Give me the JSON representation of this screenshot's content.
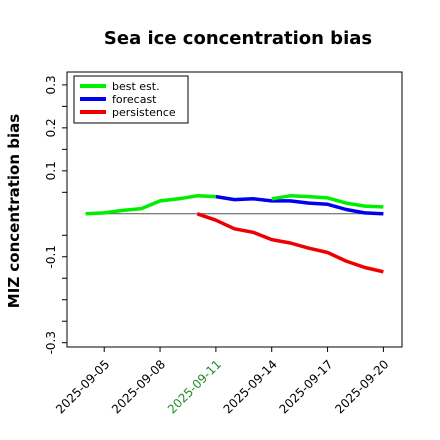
{
  "chart_data": {
    "type": "line",
    "title": "Sea ice concentration bias",
    "xlabel": "",
    "ylabel": "MIZ concentration bias",
    "ylim": [
      -0.31,
      0.33
    ],
    "yticks": [
      0.3,
      0.2,
      0.1,
      -0.1,
      -0.3
    ],
    "ytick_labels": [
      "0.3",
      "0.2",
      "0.1",
      "-0.1",
      "-0.3"
    ],
    "xlim": [
      "2025-09-03",
      "2025-09-21"
    ],
    "xticks": [
      "2025-09-05",
      "2025-09-08",
      "2025-09-11",
      "2025-09-14",
      "2025-09-17",
      "2025-09-20"
    ],
    "highlighted_xtick": "2025-09-11",
    "highlight_color": "#228B22",
    "legend_position": "top-left",
    "reference_line": 0,
    "series": [
      {
        "name": "best est.",
        "color": "#00ee00",
        "x": [
          "2025-09-04",
          "2025-09-05",
          "2025-09-06",
          "2025-09-07",
          "2025-09-08",
          "2025-09-09",
          "2025-09-10",
          "2025-09-11"
        ],
        "values": [
          0.0,
          0.002,
          0.008,
          0.012,
          0.03,
          0.035,
          0.042,
          0.04
        ]
      },
      {
        "name": "forecast",
        "color": "#0000ee",
        "x": [
          "2025-09-11",
          "2025-09-12",
          "2025-09-13",
          "2025-09-14",
          "2025-09-15",
          "2025-09-16",
          "2025-09-17",
          "2025-09-18",
          "2025-09-19",
          "2025-09-20"
        ],
        "values": [
          0.04,
          0.033,
          0.035,
          0.03,
          0.03,
          0.025,
          0.022,
          0.01,
          0.002,
          0.0
        ]
      },
      {
        "name": "persistence",
        "color": "#ee0000",
        "x": [
          "2025-09-10",
          "2025-09-11",
          "2025-09-12",
          "2025-09-13",
          "2025-09-14",
          "2025-09-15",
          "2025-09-16",
          "2025-09-17",
          "2025-09-18",
          "2025-09-19",
          "2025-09-20"
        ],
        "values": [
          0.0,
          -0.015,
          -0.035,
          -0.043,
          -0.06,
          -0.068,
          -0.08,
          -0.09,
          -0.11,
          -0.125,
          -0.135
        ]
      },
      {
        "name": "",
        "color": "#00ee00",
        "x": [
          "2025-09-14",
          "2025-09-15",
          "2025-09-16",
          "2025-09-17",
          "2025-09-18",
          "2025-09-19",
          "2025-09-20"
        ],
        "values": [
          0.035,
          0.042,
          0.04,
          0.037,
          0.025,
          0.018,
          0.016
        ]
      }
    ]
  }
}
